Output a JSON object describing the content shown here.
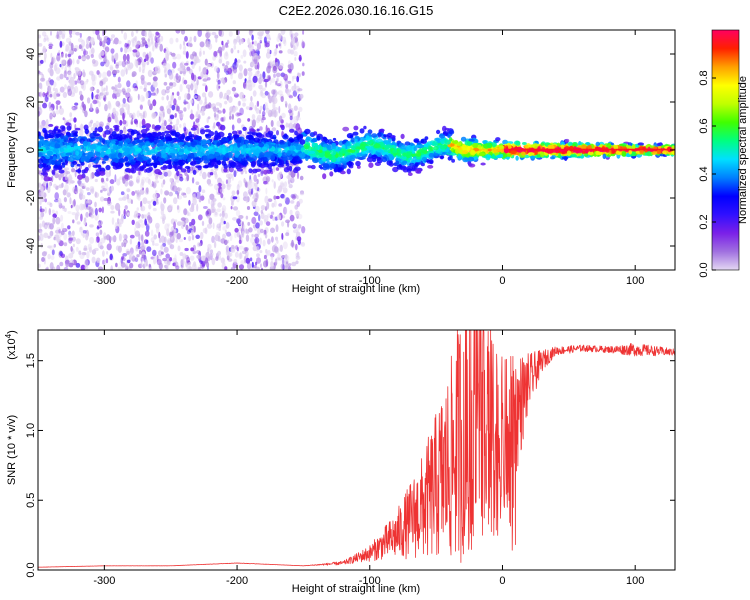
{
  "figure": {
    "title": "C2E2.2026.030.16.16.G15"
  },
  "chart_data": [
    {
      "type": "heatmap",
      "xlabel": "Height of straight line (km)",
      "ylabel": "Frequency (Hz)",
      "xlim": [
        -350,
        130
      ],
      "ylim": [
        -50,
        50
      ],
      "x_ticks": [
        -300,
        -200,
        -100,
        0,
        100
      ],
      "y_ticks": [
        -40,
        -20,
        0,
        20,
        40
      ],
      "colorbar": {
        "label": "Normalized spectral amplitude",
        "range": [
          0,
          1
        ],
        "ticks": [
          "0.0",
          "0.2",
          "0.4",
          "0.6",
          "0.8"
        ],
        "tick_values": [
          0,
          0.2,
          0.4,
          0.6,
          0.8
        ],
        "colormap": [
          "#e4d8f2",
          "#a070e0",
          "#7a20e8",
          "#3010ff",
          "#0000ff",
          "#0080ff",
          "#00e0ff",
          "#00ff80",
          "#40ff00",
          "#c0ff00",
          "#ffff00",
          "#ffa000",
          "#ff2000",
          "#ff0060"
        ]
      },
      "structure": {
        "scatter_region_x": [
          -350,
          -150
        ],
        "band_frequency_hz": 0,
        "band_halfwidth_hz": [
          8,
          6,
          5,
          3,
          1.5
        ],
        "band_halfwidth_x": [
          -350,
          -150,
          -50,
          0,
          130
        ]
      }
    },
    {
      "type": "line",
      "xlabel": "Height of straight line (km)",
      "ylabel": "SNR (10 * v/v)",
      "y_multiplier": "(x10",
      "y_multiplier_exp": "4",
      "y_multiplier_close": ")",
      "xlim": [
        -350,
        130
      ],
      "ylim": [
        0,
        1.72
      ],
      "x_ticks": [
        -300,
        -200,
        -100,
        0,
        100
      ],
      "y_ticks": [
        "0.0",
        "0.5",
        "1.0",
        "1.5"
      ],
      "y_tick_values": [
        0,
        0.5,
        1.0,
        1.5
      ],
      "series_color": "#ee3333",
      "envelope": {
        "x": [
          -350,
          -300,
          -250,
          -200,
          -150,
          -120,
          -100,
          -80,
          -60,
          -40,
          -30,
          -20,
          -10,
          0,
          10,
          20,
          30,
          40,
          60,
          80,
          100,
          130
        ],
        "y": [
          0.02,
          0.03,
          0.03,
          0.05,
          0.03,
          0.05,
          0.12,
          0.25,
          0.45,
          0.75,
          1.0,
          1.2,
          1.05,
          0.95,
          1.1,
          1.35,
          1.5,
          1.57,
          1.59,
          1.58,
          1.58,
          1.56
        ],
        "noise_fraction": [
          0.02,
          0.02,
          0.02,
          0.03,
          0.02,
          0.3,
          0.5,
          0.7,
          0.85,
          0.95,
          0.95,
          0.95,
          0.7,
          0.6,
          0.4,
          0.15,
          0.05,
          0.02,
          0.015,
          0.015,
          0.03,
          0.015
        ]
      }
    }
  ]
}
